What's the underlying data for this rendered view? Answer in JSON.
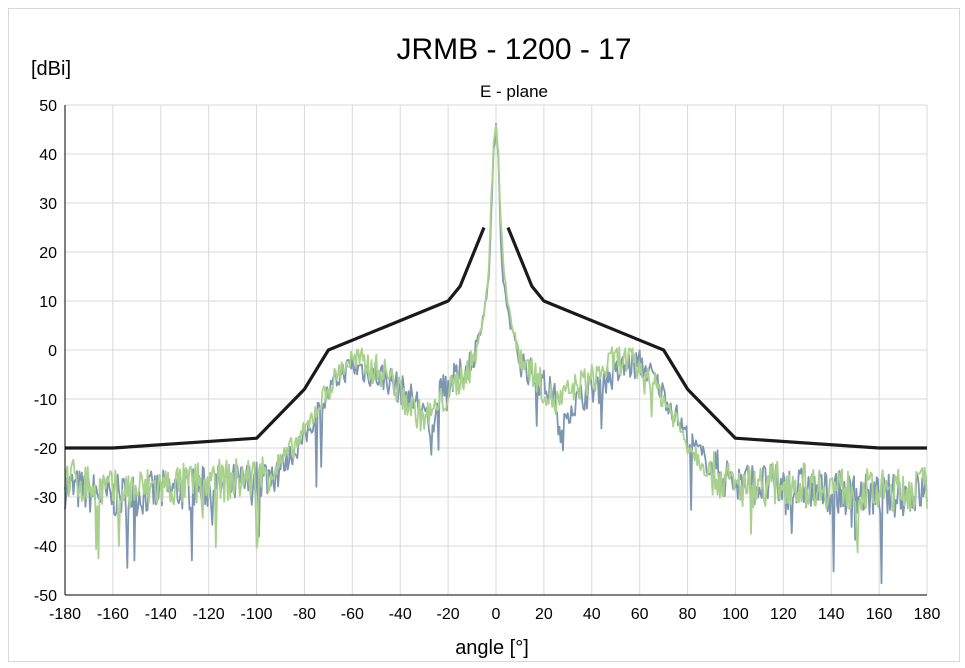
{
  "chart_data": {
    "type": "line",
    "title": "JRMB - 1200 - 17",
    "subtitle": "E - plane",
    "ylabel": "[dBi]",
    "xlabel": "angle [°]",
    "xlim": [
      -180,
      180
    ],
    "ylim": [
      -50,
      50
    ],
    "x_ticks": [
      -180,
      -160,
      -140,
      -120,
      -100,
      -80,
      -60,
      -40,
      -20,
      0,
      20,
      40,
      60,
      80,
      100,
      120,
      140,
      160,
      180
    ],
    "y_ticks": [
      50,
      40,
      30,
      20,
      10,
      0,
      -10,
      -20,
      -30,
      -40,
      -50
    ],
    "grid": true,
    "legend": "none",
    "series": [
      {
        "color": "#1a1a1a",
        "segments": [
          {
            "x": [
              -180,
              -160,
              -100,
              -80,
              -70,
              -20,
              -15,
              -5
            ],
            "y": [
              -20,
              -20,
              -18,
              -8,
              0,
              10,
              13,
              25
            ]
          },
          {
            "x": [
              5,
              15,
              20,
              70,
              80,
              100,
              160,
              180
            ],
            "y": [
              25,
              13,
              10,
              0,
              -8,
              -18,
              -20,
              -20
            ]
          }
        ]
      },
      {
        "color": "#7f96b2",
        "x": [
          -180,
          -160,
          -140,
          -120,
          -100,
          -90,
          -80,
          -75,
          -70,
          -65,
          -60,
          -55,
          -50,
          -45,
          -40,
          -35,
          -30,
          -27,
          -25,
          -20,
          -15,
          -10,
          -7,
          -5,
          -3,
          -2,
          -1,
          0,
          1,
          2,
          3,
          5,
          7,
          10,
          15,
          20,
          25,
          27,
          30,
          35,
          40,
          45,
          50,
          55,
          60,
          65,
          70,
          75,
          80,
          90,
          100,
          120,
          140,
          160,
          180
        ],
        "y": [
          -28,
          -30,
          -29,
          -28,
          -27,
          -24,
          -18,
          -13,
          -9,
          -5,
          -3,
          -4,
          -5,
          -6,
          -8,
          -10,
          -12,
          -20,
          -10,
          -7,
          -5,
          -2,
          3,
          8,
          14,
          28,
          40,
          45,
          38,
          22,
          14,
          8,
          3,
          -2,
          -5,
          -7,
          -10,
          -20,
          -12,
          -10,
          -8,
          -6,
          -5,
          -3,
          -3,
          -5,
          -9,
          -13,
          -18,
          -24,
          -27,
          -28,
          -29,
          -30,
          -29
        ]
      },
      {
        "color": "#a9d18e",
        "x": [
          -180,
          -160,
          -140,
          -120,
          -100,
          -90,
          -80,
          -75,
          -70,
          -65,
          -60,
          -55,
          -50,
          -45,
          -40,
          -35,
          -30,
          -25,
          -20,
          -15,
          -10,
          -7,
          -5,
          -3,
          -2,
          -1,
          0,
          1,
          2,
          3,
          5,
          7,
          10,
          15,
          20,
          25,
          30,
          35,
          40,
          45,
          50,
          55,
          60,
          65,
          70,
          75,
          80,
          90,
          100,
          120,
          140,
          160,
          180
        ],
        "y": [
          -26,
          -29,
          -28,
          -27,
          -26,
          -23,
          -17,
          -12,
          -8,
          -4,
          -2,
          -3,
          -4,
          -5,
          -9,
          -12,
          -14,
          -12,
          -9,
          -6,
          -3,
          2,
          8,
          16,
          30,
          42,
          46,
          40,
          26,
          18,
          10,
          4,
          -1,
          -4,
          -8,
          -11,
          -9,
          -7,
          -6,
          -4,
          -2,
          -2,
          -4,
          -6,
          -10,
          -14,
          -19,
          -25,
          -28,
          -27,
          -28,
          -29,
          -28
        ]
      }
    ]
  }
}
